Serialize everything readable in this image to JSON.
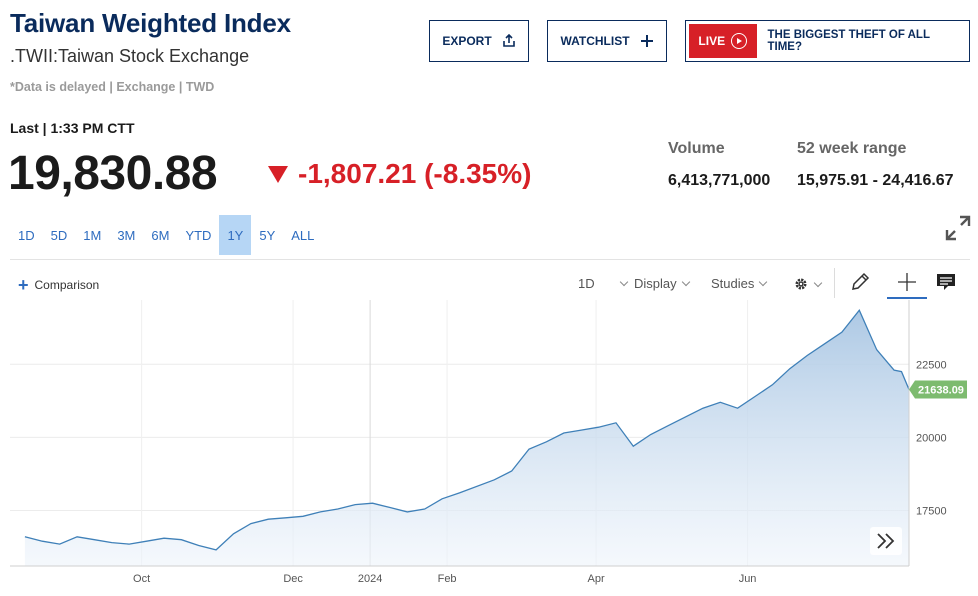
{
  "header": {
    "title": "Taiwan Weighted Index",
    "subtitle": ".TWII:Taiwan Stock Exchange",
    "delayed_note": "*Data is delayed | Exchange | TWD"
  },
  "buttons": {
    "export_label": "EXPORT",
    "watchlist_label": "WATCHLIST",
    "live_badge": "LIVE",
    "live_text": "THE BIGGEST THEFT OF ALL TIME?"
  },
  "quote": {
    "last_label": "Last | 1:33 PM CTT",
    "price": "19,830.88",
    "change": "-1,807.21 (-8.35%)",
    "volume_label": "Volume",
    "volume_value": "6,413,771,000",
    "range_label": "52 week range",
    "range_value": "15,975.91 - 24,416.67"
  },
  "ranges": [
    {
      "label": "1D",
      "active": false
    },
    {
      "label": "5D",
      "active": false
    },
    {
      "label": "1M",
      "active": false
    },
    {
      "label": "3M",
      "active": false
    },
    {
      "label": "6M",
      "active": false
    },
    {
      "label": "YTD",
      "active": false
    },
    {
      "label": "1Y",
      "active": true
    },
    {
      "label": "5Y",
      "active": false
    },
    {
      "label": "ALL",
      "active": false
    }
  ],
  "toolbar": {
    "comparison_label": "Comparison",
    "interval_label": "1D",
    "display_label": "Display",
    "studies_label": "Studies",
    "icons": [
      "settings-gear-icon",
      "pencil-draw-icon",
      "crosshair-icon",
      "comment-icon",
      "expand-icon",
      "fast-forward-icon"
    ]
  },
  "colors": {
    "navy": "#0a2b5c",
    "red": "#d72027",
    "link_blue": "#2e6cbf",
    "line_blue": "#3f80b8",
    "price_tag_green": "#7dbb6f"
  },
  "chart_data": {
    "type": "area",
    "x_labels": [
      "Oct",
      "Dec",
      "2024",
      "Feb",
      "Apr",
      "Jun"
    ],
    "y_ticks": [
      17500,
      20000,
      22500
    ],
    "ylim": [
      15600,
      24700
    ],
    "last_value_label": "21638.09",
    "grid": true,
    "x": [
      "2023-08-15",
      "2023-08-22",
      "2023-08-29",
      "2023-09-05",
      "2023-09-12",
      "2023-09-19",
      "2023-09-26",
      "2023-10-03",
      "2023-10-10",
      "2023-10-17",
      "2023-10-24",
      "2023-10-31",
      "2023-11-07",
      "2023-11-14",
      "2023-11-21",
      "2023-11-28",
      "2023-12-05",
      "2023-12-12",
      "2023-12-19",
      "2023-12-26",
      "2024-01-02",
      "2024-01-09",
      "2024-01-16",
      "2024-01-23",
      "2024-01-30",
      "2024-02-06",
      "2024-02-20",
      "2024-02-27",
      "2024-03-05",
      "2024-03-12",
      "2024-03-19",
      "2024-03-26",
      "2024-04-02",
      "2024-04-09",
      "2024-04-16",
      "2024-04-23",
      "2024-04-30",
      "2024-05-07",
      "2024-05-14",
      "2024-05-21",
      "2024-05-28",
      "2024-06-04",
      "2024-06-11",
      "2024-06-18",
      "2024-06-25",
      "2024-07-02",
      "2024-07-09",
      "2024-07-16",
      "2024-07-23",
      "2024-07-30",
      "2024-08-02",
      "2024-08-05"
    ],
    "values": [
      16600,
      16450,
      16350,
      16600,
      16500,
      16400,
      16350,
      16450,
      16550,
      16500,
      16300,
      16150,
      16700,
      17050,
      17200,
      17250,
      17300,
      17450,
      17550,
      17700,
      17750,
      17600,
      17450,
      17550,
      17900,
      18100,
      18550,
      18850,
      19600,
      19850,
      20150,
      20250,
      20350,
      20500,
      19700,
      20100,
      20400,
      20700,
      21000,
      21200,
      21000,
      21400,
      21800,
      22350,
      22800,
      23200,
      23600,
      24350,
      23000,
      22300,
      22250,
      21638.09
    ]
  }
}
